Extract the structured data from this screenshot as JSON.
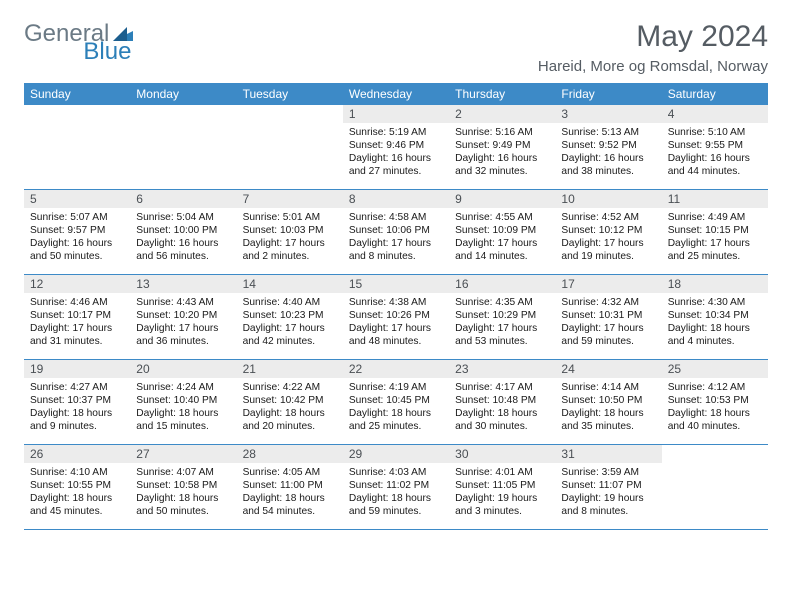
{
  "logo": {
    "text1": "General",
    "text2": "Blue"
  },
  "title": "May 2024",
  "location": "Hareid, More og Romsdal, Norway",
  "colors": {
    "header_bg": "#3d8ac7",
    "header_text": "#ffffff",
    "daynum_bg": "#ececec",
    "border": "#3d8ac7",
    "logo_gray": "#6b7a85",
    "logo_blue": "#2c7fb8",
    "title_color": "#555c63"
  },
  "day_names": [
    "Sunday",
    "Monday",
    "Tuesday",
    "Wednesday",
    "Thursday",
    "Friday",
    "Saturday"
  ],
  "weeks": [
    [
      {
        "n": "",
        "sr": "",
        "ss": "",
        "dl": ""
      },
      {
        "n": "",
        "sr": "",
        "ss": "",
        "dl": ""
      },
      {
        "n": "",
        "sr": "",
        "ss": "",
        "dl": ""
      },
      {
        "n": "1",
        "sr": "Sunrise: 5:19 AM",
        "ss": "Sunset: 9:46 PM",
        "dl": "Daylight: 16 hours and 27 minutes."
      },
      {
        "n": "2",
        "sr": "Sunrise: 5:16 AM",
        "ss": "Sunset: 9:49 PM",
        "dl": "Daylight: 16 hours and 32 minutes."
      },
      {
        "n": "3",
        "sr": "Sunrise: 5:13 AM",
        "ss": "Sunset: 9:52 PM",
        "dl": "Daylight: 16 hours and 38 minutes."
      },
      {
        "n": "4",
        "sr": "Sunrise: 5:10 AM",
        "ss": "Sunset: 9:55 PM",
        "dl": "Daylight: 16 hours and 44 minutes."
      }
    ],
    [
      {
        "n": "5",
        "sr": "Sunrise: 5:07 AM",
        "ss": "Sunset: 9:57 PM",
        "dl": "Daylight: 16 hours and 50 minutes."
      },
      {
        "n": "6",
        "sr": "Sunrise: 5:04 AM",
        "ss": "Sunset: 10:00 PM",
        "dl": "Daylight: 16 hours and 56 minutes."
      },
      {
        "n": "7",
        "sr": "Sunrise: 5:01 AM",
        "ss": "Sunset: 10:03 PM",
        "dl": "Daylight: 17 hours and 2 minutes."
      },
      {
        "n": "8",
        "sr": "Sunrise: 4:58 AM",
        "ss": "Sunset: 10:06 PM",
        "dl": "Daylight: 17 hours and 8 minutes."
      },
      {
        "n": "9",
        "sr": "Sunrise: 4:55 AM",
        "ss": "Sunset: 10:09 PM",
        "dl": "Daylight: 17 hours and 14 minutes."
      },
      {
        "n": "10",
        "sr": "Sunrise: 4:52 AM",
        "ss": "Sunset: 10:12 PM",
        "dl": "Daylight: 17 hours and 19 minutes."
      },
      {
        "n": "11",
        "sr": "Sunrise: 4:49 AM",
        "ss": "Sunset: 10:15 PM",
        "dl": "Daylight: 17 hours and 25 minutes."
      }
    ],
    [
      {
        "n": "12",
        "sr": "Sunrise: 4:46 AM",
        "ss": "Sunset: 10:17 PM",
        "dl": "Daylight: 17 hours and 31 minutes."
      },
      {
        "n": "13",
        "sr": "Sunrise: 4:43 AM",
        "ss": "Sunset: 10:20 PM",
        "dl": "Daylight: 17 hours and 36 minutes."
      },
      {
        "n": "14",
        "sr": "Sunrise: 4:40 AM",
        "ss": "Sunset: 10:23 PM",
        "dl": "Daylight: 17 hours and 42 minutes."
      },
      {
        "n": "15",
        "sr": "Sunrise: 4:38 AM",
        "ss": "Sunset: 10:26 PM",
        "dl": "Daylight: 17 hours and 48 minutes."
      },
      {
        "n": "16",
        "sr": "Sunrise: 4:35 AM",
        "ss": "Sunset: 10:29 PM",
        "dl": "Daylight: 17 hours and 53 minutes."
      },
      {
        "n": "17",
        "sr": "Sunrise: 4:32 AM",
        "ss": "Sunset: 10:31 PM",
        "dl": "Daylight: 17 hours and 59 minutes."
      },
      {
        "n": "18",
        "sr": "Sunrise: 4:30 AM",
        "ss": "Sunset: 10:34 PM",
        "dl": "Daylight: 18 hours and 4 minutes."
      }
    ],
    [
      {
        "n": "19",
        "sr": "Sunrise: 4:27 AM",
        "ss": "Sunset: 10:37 PM",
        "dl": "Daylight: 18 hours and 9 minutes."
      },
      {
        "n": "20",
        "sr": "Sunrise: 4:24 AM",
        "ss": "Sunset: 10:40 PM",
        "dl": "Daylight: 18 hours and 15 minutes."
      },
      {
        "n": "21",
        "sr": "Sunrise: 4:22 AM",
        "ss": "Sunset: 10:42 PM",
        "dl": "Daylight: 18 hours and 20 minutes."
      },
      {
        "n": "22",
        "sr": "Sunrise: 4:19 AM",
        "ss": "Sunset: 10:45 PM",
        "dl": "Daylight: 18 hours and 25 minutes."
      },
      {
        "n": "23",
        "sr": "Sunrise: 4:17 AM",
        "ss": "Sunset: 10:48 PM",
        "dl": "Daylight: 18 hours and 30 minutes."
      },
      {
        "n": "24",
        "sr": "Sunrise: 4:14 AM",
        "ss": "Sunset: 10:50 PM",
        "dl": "Daylight: 18 hours and 35 minutes."
      },
      {
        "n": "25",
        "sr": "Sunrise: 4:12 AM",
        "ss": "Sunset: 10:53 PM",
        "dl": "Daylight: 18 hours and 40 minutes."
      }
    ],
    [
      {
        "n": "26",
        "sr": "Sunrise: 4:10 AM",
        "ss": "Sunset: 10:55 PM",
        "dl": "Daylight: 18 hours and 45 minutes."
      },
      {
        "n": "27",
        "sr": "Sunrise: 4:07 AM",
        "ss": "Sunset: 10:58 PM",
        "dl": "Daylight: 18 hours and 50 minutes."
      },
      {
        "n": "28",
        "sr": "Sunrise: 4:05 AM",
        "ss": "Sunset: 11:00 PM",
        "dl": "Daylight: 18 hours and 54 minutes."
      },
      {
        "n": "29",
        "sr": "Sunrise: 4:03 AM",
        "ss": "Sunset: 11:02 PM",
        "dl": "Daylight: 18 hours and 59 minutes."
      },
      {
        "n": "30",
        "sr": "Sunrise: 4:01 AM",
        "ss": "Sunset: 11:05 PM",
        "dl": "Daylight: 19 hours and 3 minutes."
      },
      {
        "n": "31",
        "sr": "Sunrise: 3:59 AM",
        "ss": "Sunset: 11:07 PM",
        "dl": "Daylight: 19 hours and 8 minutes."
      },
      {
        "n": "",
        "sr": "",
        "ss": "",
        "dl": ""
      }
    ]
  ]
}
